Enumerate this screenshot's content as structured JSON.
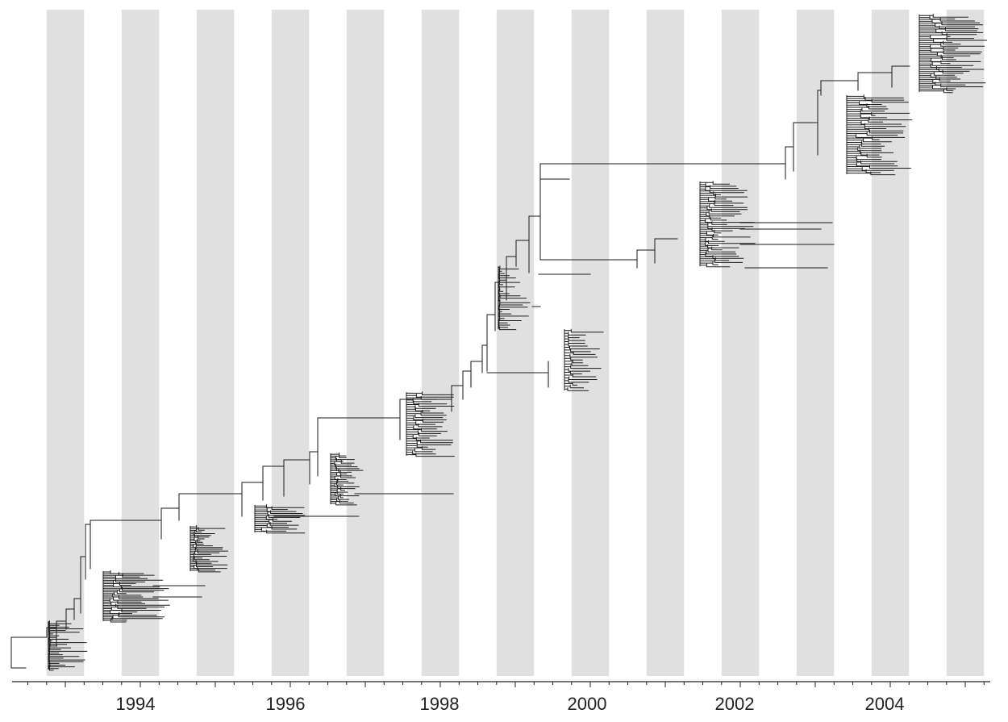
{
  "figure": {
    "colors": {
      "band": "#e0e0e0",
      "tree": "#1a1a1a",
      "axis": "#222222",
      "background": "#ffffff"
    },
    "axis": {
      "year_labels": [
        "1994",
        "1996",
        "1998",
        "2000",
        "2002",
        "2004"
      ],
      "tick_interval": "quarter-year"
    }
  },
  "chart_data": {
    "type": "phylogenetic-tree",
    "x_axis": {
      "unit": "year",
      "range": [
        1992.33,
        2005.33
      ]
    },
    "seasonal_bands": [
      [
        1992.75,
        1993.25
      ],
      [
        1993.75,
        1994.25
      ],
      [
        1994.75,
        1995.25
      ],
      [
        1995.75,
        1996.25
      ],
      [
        1996.75,
        1997.25
      ],
      [
        1997.75,
        1998.25
      ],
      [
        1998.75,
        1999.25
      ],
      [
        1999.75,
        2000.25
      ],
      [
        2000.75,
        2001.25
      ],
      [
        2001.75,
        2002.25
      ],
      [
        2002.75,
        2003.25
      ],
      [
        2003.75,
        2004.25
      ],
      [
        2004.75,
        2005.25
      ]
    ],
    "season_clusters": [
      {
        "season": 1993,
        "approx_tip_span": [
          1992.8,
          1993.3
        ]
      },
      {
        "season": 1994,
        "approx_tip_span": [
          1993.8,
          1994.4
        ]
      },
      {
        "season": 1995,
        "approx_tip_span": [
          1994.8,
          1995.2
        ]
      },
      {
        "season": 1996,
        "approx_tip_span": [
          1995.8,
          1996.2
        ]
      },
      {
        "season": 1997,
        "approx_tip_span": [
          1996.7,
          1997.0
        ]
      },
      {
        "season": 1998,
        "approx_tip_span": [
          1997.8,
          1998.2
        ]
      },
      {
        "season": 1999,
        "approx_tip_span": [
          1998.8,
          1999.2
        ]
      },
      {
        "season": 2000,
        "approx_tip_span": [
          1999.8,
          2000.2
        ]
      },
      {
        "season": 2002,
        "approx_tip_span": [
          2001.7,
          2002.2
        ]
      },
      {
        "season": 2004,
        "approx_tip_span": [
          2003.8,
          2004.3
        ]
      },
      {
        "season": 2005,
        "approx_tip_span": [
          2004.8,
          2005.3
        ]
      }
    ]
  }
}
